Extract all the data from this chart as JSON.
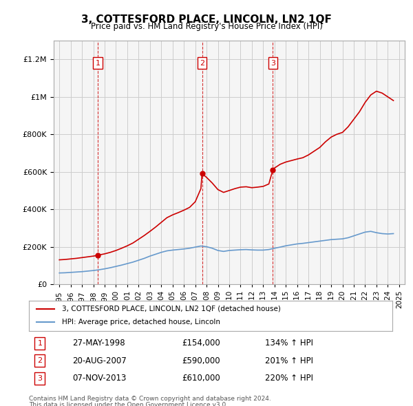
{
  "title": "3, COTTESFORD PLACE, LINCOLN, LN2 1QF",
  "subtitle": "Price paid vs. HM Land Registry's House Price Index (HPI)",
  "legend_line1": "3, COTTESFORD PLACE, LINCOLN, LN2 1QF (detached house)",
  "legend_line2": "HPI: Average price, detached house, Lincoln",
  "footer1": "Contains HM Land Registry data © Crown copyright and database right 2024.",
  "footer2": "This data is licensed under the Open Government Licence v3.0.",
  "transactions": [
    {
      "num": 1,
      "date": "27-MAY-1998",
      "price": "£154,000",
      "pct": "134% ↑ HPI",
      "year": 1998.4
    },
    {
      "num": 2,
      "date": "20-AUG-2007",
      "price": "£590,000",
      "pct": "201% ↑ HPI",
      "year": 2007.6
    },
    {
      "num": 3,
      "date": "07-NOV-2013",
      "price": "£610,000",
      "pct": "220% ↑ HPI",
      "year": 2013.85
    }
  ],
  "red_line_x": [
    1995.0,
    1995.5,
    1996.0,
    1996.5,
    1997.0,
    1997.5,
    1998.0,
    1998.4,
    1998.5,
    1999.0,
    1999.5,
    2000.0,
    2000.5,
    2001.0,
    2001.5,
    2002.0,
    2002.5,
    2003.0,
    2003.5,
    2004.0,
    2004.5,
    2005.0,
    2005.5,
    2006.0,
    2006.5,
    2007.0,
    2007.5,
    2007.6,
    2008.0,
    2008.5,
    2009.0,
    2009.5,
    2010.0,
    2010.5,
    2011.0,
    2011.5,
    2012.0,
    2012.5,
    2013.0,
    2013.5,
    2013.85,
    2014.0,
    2014.5,
    2015.0,
    2015.5,
    2016.0,
    2016.5,
    2017.0,
    2017.5,
    2018.0,
    2018.5,
    2019.0,
    2019.5,
    2020.0,
    2020.5,
    2021.0,
    2021.5,
    2022.0,
    2022.5,
    2023.0,
    2023.5,
    2024.0,
    2024.5
  ],
  "red_line_y": [
    130000,
    132000,
    135000,
    138000,
    142000,
    146000,
    150000,
    154000,
    156000,
    162000,
    170000,
    180000,
    192000,
    205000,
    220000,
    240000,
    260000,
    282000,
    305000,
    330000,
    355000,
    370000,
    382000,
    395000,
    410000,
    440000,
    510000,
    590000,
    570000,
    540000,
    505000,
    490000,
    500000,
    510000,
    518000,
    520000,
    515000,
    518000,
    522000,
    535000,
    610000,
    620000,
    640000,
    652000,
    660000,
    668000,
    675000,
    690000,
    710000,
    730000,
    760000,
    785000,
    800000,
    810000,
    840000,
    880000,
    920000,
    970000,
    1010000,
    1030000,
    1020000,
    1000000,
    980000
  ],
  "blue_line_x": [
    1995.0,
    1995.5,
    1996.0,
    1996.5,
    1997.0,
    1997.5,
    1998.0,
    1998.5,
    1999.0,
    1999.5,
    2000.0,
    2000.5,
    2001.0,
    2001.5,
    2002.0,
    2002.5,
    2003.0,
    2003.5,
    2004.0,
    2004.5,
    2005.0,
    2005.5,
    2006.0,
    2006.5,
    2007.0,
    2007.5,
    2008.0,
    2008.5,
    2009.0,
    2009.5,
    2010.0,
    2010.5,
    2011.0,
    2011.5,
    2012.0,
    2012.5,
    2013.0,
    2013.5,
    2014.0,
    2014.5,
    2015.0,
    2015.5,
    2016.0,
    2016.5,
    2017.0,
    2017.5,
    2018.0,
    2018.5,
    2019.0,
    2019.5,
    2020.0,
    2020.5,
    2021.0,
    2021.5,
    2022.0,
    2022.5,
    2023.0,
    2023.5,
    2024.0,
    2024.5
  ],
  "blue_line_y": [
    60000,
    61000,
    63000,
    65000,
    67000,
    70000,
    73000,
    77000,
    82000,
    88000,
    95000,
    102000,
    110000,
    118000,
    128000,
    138000,
    150000,
    160000,
    170000,
    178000,
    182000,
    185000,
    188000,
    192000,
    198000,
    204000,
    200000,
    192000,
    180000,
    175000,
    180000,
    182000,
    184000,
    185000,
    183000,
    182000,
    182000,
    185000,
    192000,
    198000,
    205000,
    210000,
    215000,
    218000,
    222000,
    226000,
    230000,
    234000,
    238000,
    240000,
    242000,
    248000,
    258000,
    268000,
    278000,
    282000,
    275000,
    270000,
    268000,
    270000
  ],
  "ylim": [
    0,
    1300000
  ],
  "xlim": [
    1994.5,
    2025.5
  ],
  "red_color": "#cc0000",
  "blue_color": "#6699cc",
  "grid_color": "#cccccc",
  "bg_color": "#ffffff",
  "plot_bg_color": "#f5f5f5"
}
